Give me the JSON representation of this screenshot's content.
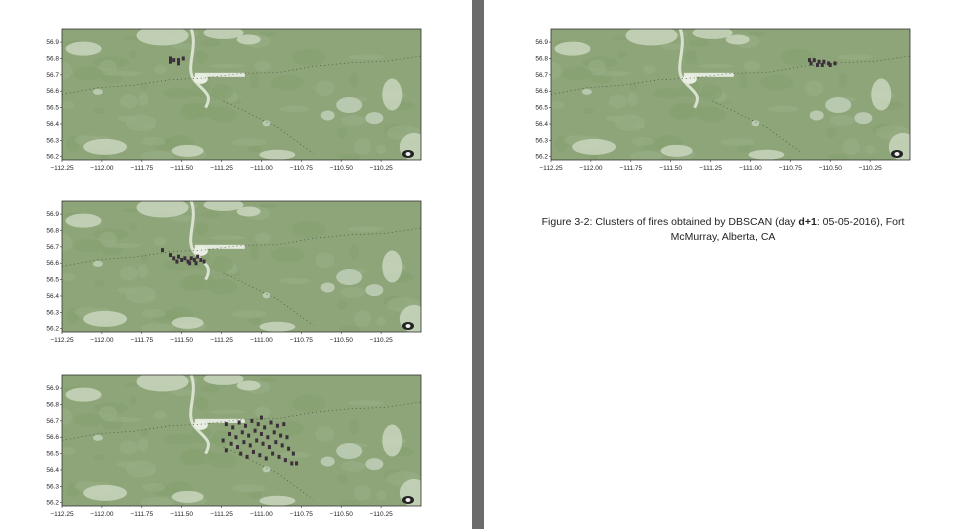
{
  "figure": {
    "caption_before": "Figure 3-2: Clusters of fires obtained by DBSCAN (day ",
    "caption_bold": "d+1",
    "caption_after": ": 05-05-2016), Fort McMurray, Alberta, CA"
  },
  "chart_data": [
    {
      "type": "scatter",
      "panel": "left-top",
      "x_ticks": [
        "−112.25",
        "−112.00",
        "−111.75",
        "−111.50",
        "−111.25",
        "−111.00",
        "−110.75",
        "−110.50",
        "−110.25"
      ],
      "y_ticks": [
        "56.9",
        "56.8",
        "56.7",
        "56.6",
        "56.5",
        "56.4",
        "56.3",
        "56.2"
      ],
      "xlim": [
        -112.25,
        -110.0
      ],
      "ylim": [
        56.18,
        56.98
      ],
      "points": [
        [
          -111.57,
          56.8
        ],
        [
          -111.55,
          56.79
        ],
        [
          -111.52,
          56.79
        ],
        [
          -111.49,
          56.8
        ],
        [
          -111.57,
          56.78
        ],
        [
          -111.52,
          56.77
        ]
      ]
    },
    {
      "type": "scatter",
      "panel": "right-top",
      "x_ticks": [
        "−112.25",
        "−112.00",
        "−111.75",
        "−111.50",
        "−111.25",
        "−111.00",
        "−110.75",
        "−110.50",
        "−110.25"
      ],
      "y_ticks": [
        "56.9",
        "56.8",
        "56.7",
        "56.6",
        "56.5",
        "56.4",
        "56.3",
        "56.2"
      ],
      "xlim": [
        -112.25,
        -110.0
      ],
      "ylim": [
        56.18,
        56.98
      ],
      "points": [
        [
          -110.63,
          56.79
        ],
        [
          -110.6,
          56.79
        ],
        [
          -110.57,
          56.78
        ],
        [
          -110.54,
          56.78
        ],
        [
          -110.51,
          56.77
        ],
        [
          -110.62,
          56.77
        ],
        [
          -110.58,
          56.76
        ],
        [
          -110.55,
          56.76
        ],
        [
          -110.5,
          56.76
        ],
        [
          -110.47,
          56.77
        ]
      ]
    },
    {
      "type": "scatter",
      "panel": "left-middle",
      "x_ticks": [
        "−112.25",
        "−112.00",
        "−111.75",
        "−111.50",
        "−111.25",
        "−111.00",
        "−110.75",
        "−110.50",
        "−110.25"
      ],
      "y_ticks": [
        "56.9",
        "56.8",
        "56.7",
        "56.6",
        "56.5",
        "56.4",
        "56.3",
        "56.2"
      ],
      "xlim": [
        -112.25,
        -110.0
      ],
      "ylim": [
        56.18,
        56.98
      ],
      "points": [
        [
          -111.62,
          56.68
        ],
        [
          -111.57,
          56.65
        ],
        [
          -111.55,
          56.63
        ],
        [
          -111.52,
          56.64
        ],
        [
          -111.5,
          56.62
        ],
        [
          -111.48,
          56.63
        ],
        [
          -111.46,
          56.61
        ],
        [
          -111.44,
          56.63
        ],
        [
          -111.42,
          56.62
        ],
        [
          -111.4,
          56.64
        ],
        [
          -111.38,
          56.62
        ],
        [
          -111.36,
          56.61
        ],
        [
          -111.53,
          56.61
        ],
        [
          -111.45,
          56.6
        ],
        [
          -111.41,
          56.6
        ]
      ]
    },
    {
      "type": "scatter",
      "panel": "left-bottom",
      "x_ticks": [
        "−112.25",
        "−112.00",
        "−111.75",
        "−111.50",
        "−111.25",
        "−111.00",
        "−110.75",
        "−110.50",
        "−110.25"
      ],
      "y_ticks": [
        "56.9",
        "56.8",
        "56.7",
        "56.6",
        "56.5",
        "56.4",
        "56.3",
        "56.2"
      ],
      "xlim": [
        -112.25,
        -110.0
      ],
      "ylim": [
        56.18,
        56.98
      ],
      "points": [
        [
          -111.22,
          56.68
        ],
        [
          -111.18,
          56.66
        ],
        [
          -111.14,
          56.69
        ],
        [
          -111.1,
          56.67
        ],
        [
          -111.06,
          56.7
        ],
        [
          -111.02,
          56.68
        ],
        [
          -110.98,
          56.66
        ],
        [
          -110.94,
          56.69
        ],
        [
          -110.9,
          56.67
        ],
        [
          -110.86,
          56.68
        ],
        [
          -111.2,
          56.62
        ],
        [
          -111.16,
          56.6
        ],
        [
          -111.12,
          56.63
        ],
        [
          -111.08,
          56.61
        ],
        [
          -111.04,
          56.64
        ],
        [
          -111.0,
          56.62
        ],
        [
          -110.96,
          56.6
        ],
        [
          -110.92,
          56.63
        ],
        [
          -110.88,
          56.61
        ],
        [
          -110.84,
          56.6
        ],
        [
          -111.19,
          56.56
        ],
        [
          -111.15,
          56.54
        ],
        [
          -111.11,
          56.57
        ],
        [
          -111.07,
          56.55
        ],
        [
          -111.03,
          56.58
        ],
        [
          -110.99,
          56.56
        ],
        [
          -110.95,
          56.54
        ],
        [
          -110.91,
          56.57
        ],
        [
          -110.87,
          56.55
        ],
        [
          -110.83,
          56.53
        ],
        [
          -111.13,
          56.5
        ],
        [
          -111.09,
          56.48
        ],
        [
          -111.05,
          56.51
        ],
        [
          -111.01,
          56.49
        ],
        [
          -110.97,
          56.47
        ],
        [
          -110.93,
          56.5
        ],
        [
          -110.89,
          56.48
        ],
        [
          -110.85,
          56.46
        ],
        [
          -110.81,
          56.44
        ],
        [
          -110.78,
          56.44
        ],
        [
          -111.24,
          56.58
        ],
        [
          -111.22,
          56.52
        ],
        [
          -111.0,
          56.72
        ],
        [
          -110.8,
          56.5
        ]
      ]
    }
  ]
}
